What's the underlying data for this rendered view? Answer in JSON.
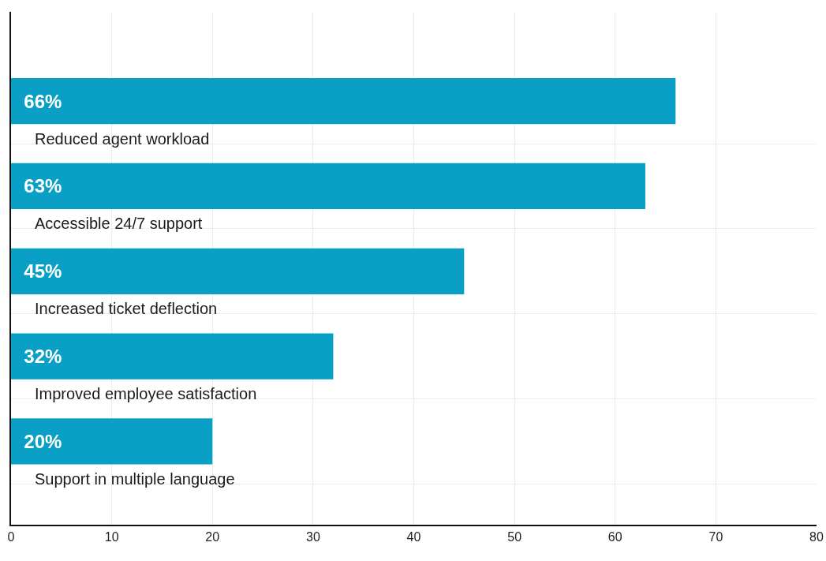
{
  "chart_data": {
    "type": "bar",
    "orientation": "horizontal",
    "categories": [
      "Reduced agent workload",
      "Accessible 24/7 support",
      "Increased ticket deflection",
      "Improved employee satisfaction",
      "Support in multiple language"
    ],
    "values": [
      66,
      63,
      45,
      32,
      20
    ],
    "value_labels": [
      "66%",
      "63%",
      "45%",
      "32%",
      "20%"
    ],
    "color": "#0a9fc4",
    "xlim": [
      0,
      80
    ],
    "xticks": [
      0,
      10,
      20,
      30,
      40,
      50,
      60,
      70,
      80
    ],
    "grid": true
  }
}
